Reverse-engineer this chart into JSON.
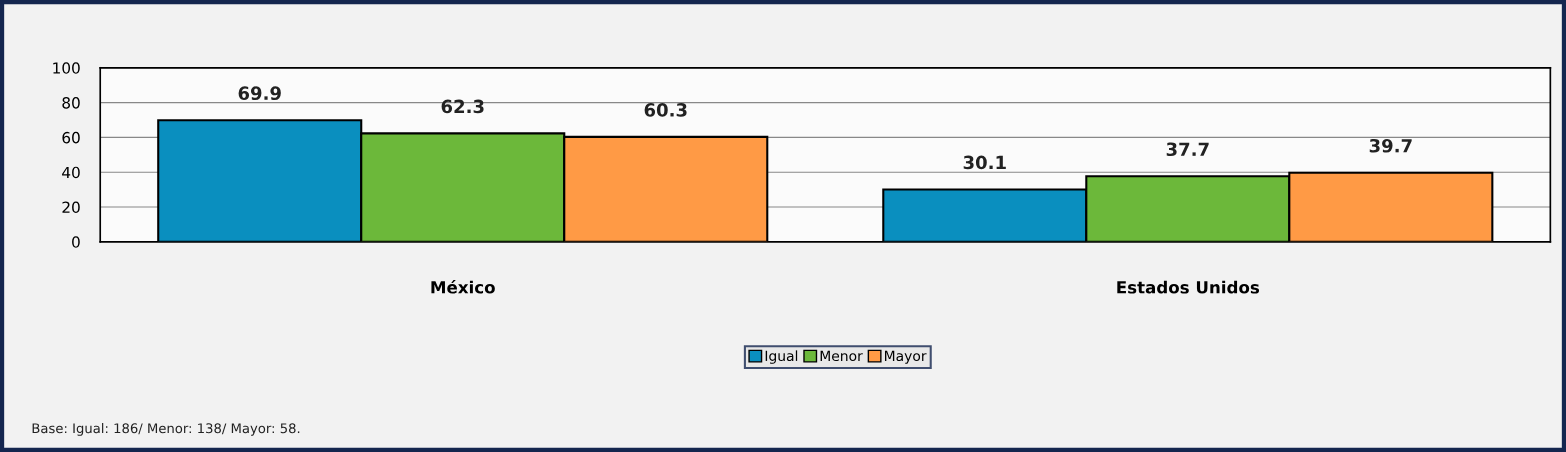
{
  "chart_data": {
    "type": "bar",
    "categories": [
      "México",
      "Estados Unidos"
    ],
    "series": [
      {
        "name": "Igual",
        "color": "#0a8fbf",
        "values": [
          69.9,
          30.1
        ]
      },
      {
        "name": "Menor",
        "color": "#6cb83a",
        "values": [
          62.3,
          37.7
        ]
      },
      {
        "name": "Mayor",
        "color": "#ff9a45",
        "values": [
          60.3,
          39.7
        ]
      }
    ],
    "ylim": [
      0,
      100
    ],
    "yticks": [
      0,
      20,
      40,
      60,
      80,
      100
    ],
    "grid": "y",
    "legend": "bottom",
    "data_labels": true,
    "annotations": [
      "Base: Igual: 186/ Menor: 138/ Mayor: 58."
    ]
  }
}
